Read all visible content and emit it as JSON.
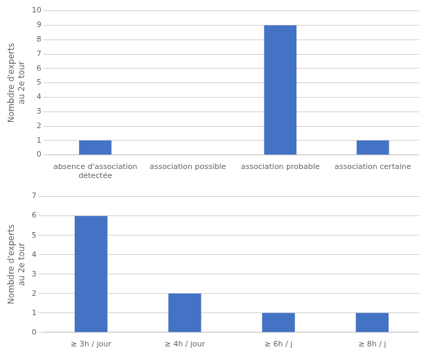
{
  "chart_data": [
    {
      "type": "bar",
      "categories": [
        "absence d'association\ndétectée",
        "association possible",
        "association probable",
        "association certaine"
      ],
      "values": [
        1,
        0,
        9,
        1
      ],
      "color": "#4472C4",
      "ylim": [
        0,
        10
      ],
      "yticks": [
        0,
        1,
        2,
        3,
        4,
        5,
        6,
        7,
        8,
        9,
        10
      ],
      "ylabel": "Nombdre d'experts\nau 2e tour",
      "grid": true
    },
    {
      "type": "bar",
      "categories": [
        "≥ 3h / jour",
        "≥ 4h / jour",
        "≥ 6h / j",
        "≥ 8h / j"
      ],
      "values": [
        6,
        2,
        1,
        1
      ],
      "color": "#4472C4",
      "ylim": [
        0,
        7
      ],
      "yticks": [
        0,
        1,
        2,
        3,
        4,
        5,
        6,
        7
      ],
      "ylabel": "Nombdre d'experts\nau 2e tour",
      "grid": true
    }
  ]
}
